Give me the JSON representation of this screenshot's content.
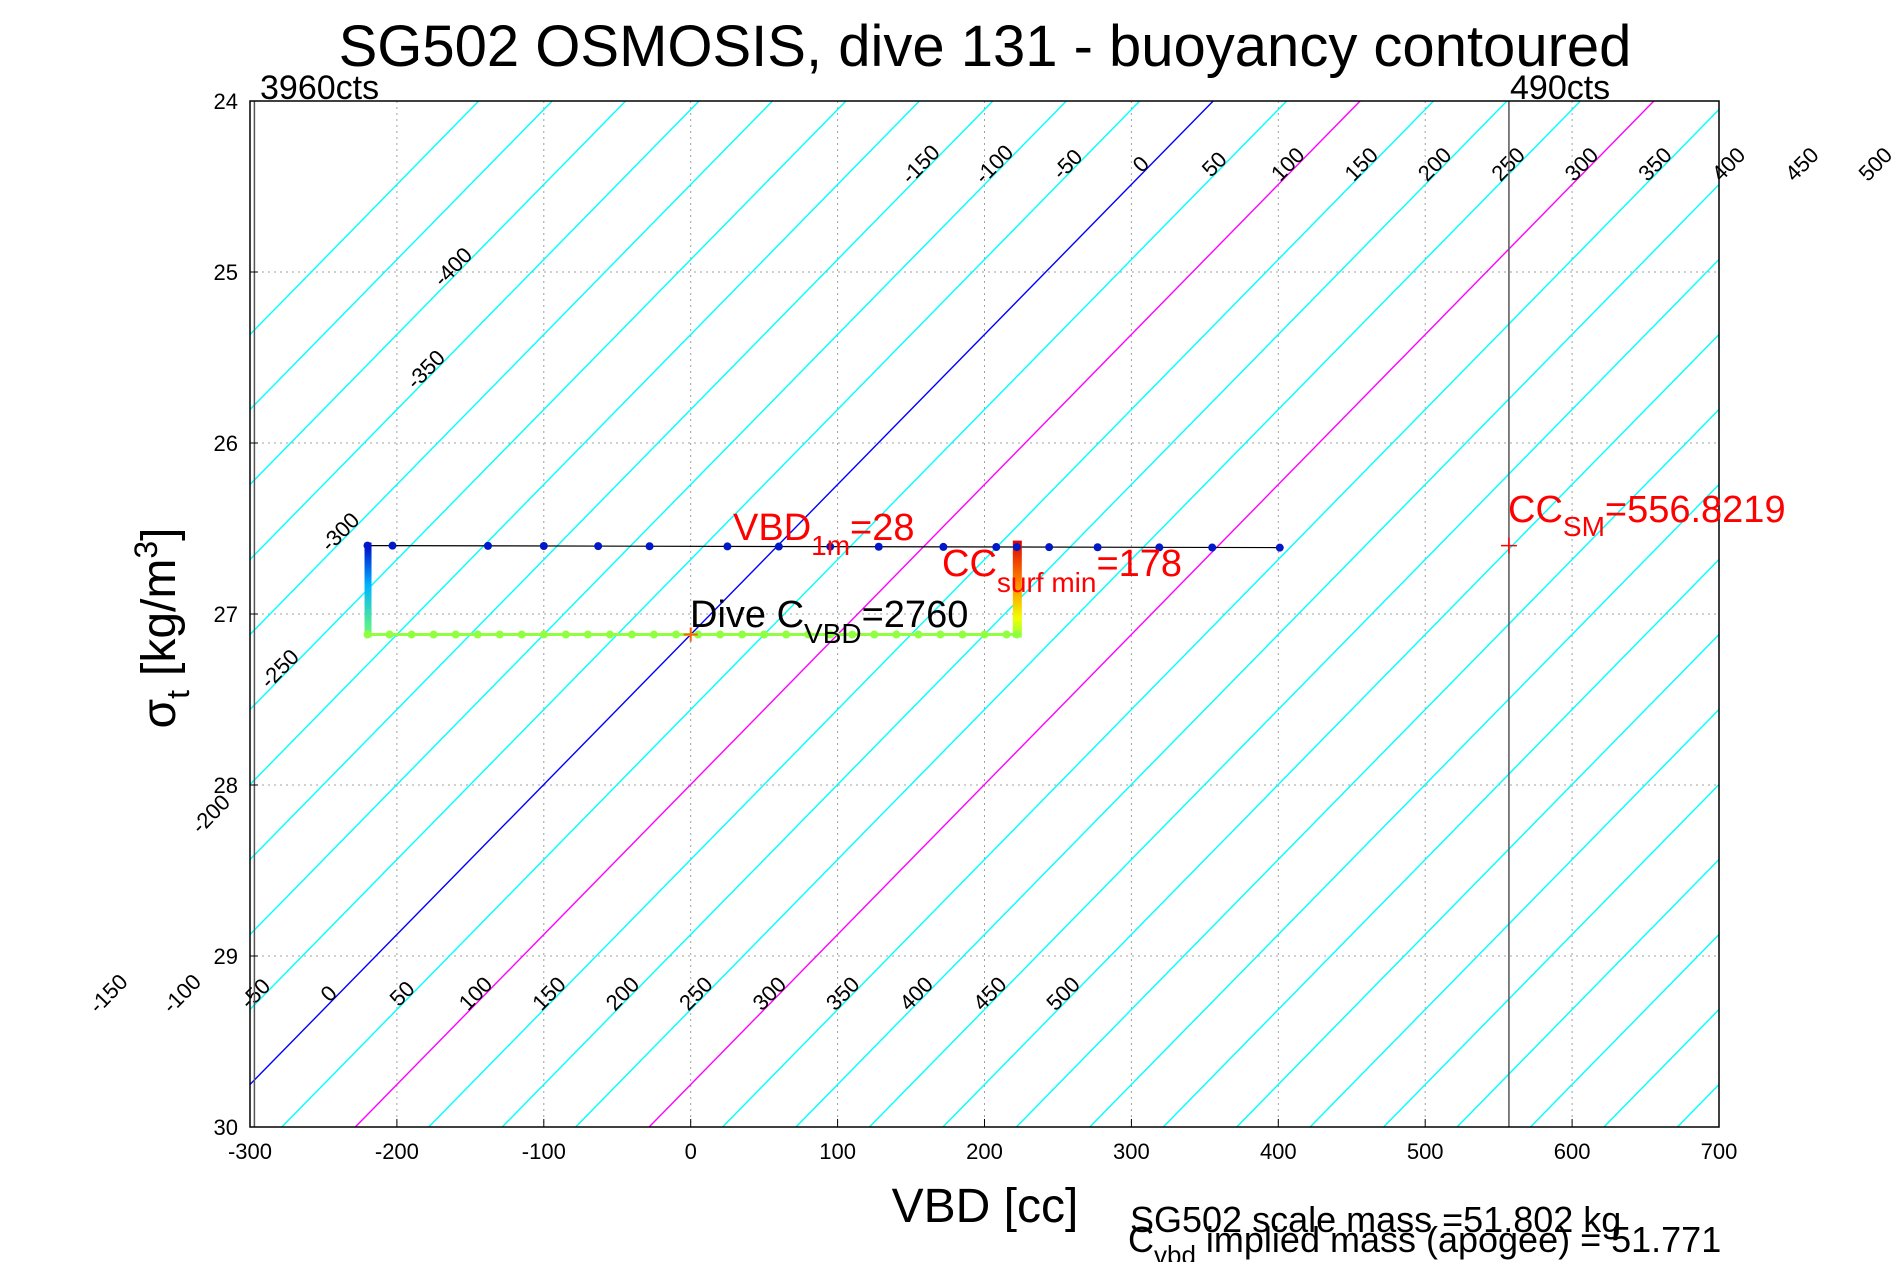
{
  "chart_data": {
    "type": "scatter",
    "title": "SG502 OSMOSIS, dive 131 - buoyancy contoured",
    "xlabel": "VBD [cc]",
    "ylabel": "σ_t [kg/m^3]",
    "ylabel_parts": {
      "sym": "σ",
      "sub": "t",
      "unit_pre": "[kg/m",
      "sup": "3",
      "unit_post": "]"
    },
    "xlim": [
      -300,
      700
    ],
    "ylim": [
      24,
      30
    ],
    "y_reversed": true,
    "grid": true,
    "xticks": [
      "-300",
      "-200",
      "-100",
      "0",
      "100",
      "200",
      "300",
      "400",
      "500",
      "600",
      "700"
    ],
    "yticks": [
      "24",
      "25",
      "26",
      "27",
      "28",
      "29",
      "30"
    ],
    "contour_top_labels": [
      "-400",
      "-350",
      "-300",
      "-250",
      "-200",
      "-150",
      "-100",
      "-50",
      "0",
      "50",
      "100",
      "150",
      "200",
      "250",
      "300",
      "350",
      "400",
      "450",
      "500"
    ],
    "contour_bottom_labels": [
      "-150",
      "-100",
      "-50",
      "0",
      "50",
      "100",
      "150",
      "200",
      "250",
      "300",
      "350",
      "400",
      "450",
      "500"
    ],
    "special_lines": {
      "zero_buoyancy_color": "#0000ff",
      "highlight_color": "#ff00ff",
      "highlight_levels": [
        100,
        300
      ],
      "contour_color": "#00ffff"
    },
    "limit_lines": [
      {
        "x": -297,
        "label": "3960cts"
      },
      {
        "x": 557,
        "label": "490cts"
      }
    ],
    "upper_track": {
      "y": 26.6,
      "points_x": [
        -220,
        -203,
        -138,
        -100,
        -63,
        -28,
        25,
        60,
        95,
        128,
        172,
        208,
        222,
        244,
        277,
        319,
        355,
        401
      ]
    },
    "lower_track": {
      "y": 27.12,
      "points_x": [
        -220,
        -205,
        -190,
        -175,
        -160,
        -145,
        -130,
        -115,
        -100,
        -85,
        -70,
        -55,
        -40,
        -25,
        -10,
        5,
        20,
        35,
        50,
        65,
        80,
        95,
        110,
        125,
        140,
        155,
        170,
        185,
        200,
        215,
        222
      ]
    },
    "annotations": {
      "vbd1m": {
        "main": "VBD",
        "sub": "1m",
        "post": "=28",
        "color": "#ff0000"
      },
      "ccsurf": {
        "main": "CC",
        "sub": "surf min",
        "post": "=178",
        "color": "#ff0000"
      },
      "dive_cvbd": {
        "main": "Dive C",
        "sub": "VBD",
        "post": "=2760",
        "color": "#000000"
      },
      "ccsm": {
        "main": "CC",
        "sub": "SM",
        "post": "=556.8219",
        "color": "#ff0000",
        "x": 557,
        "y": 26.6
      }
    },
    "footer": {
      "line1": "SG502 scale mass =51.802 kg",
      "line2_main": "C",
      "line2_sub": "vbd",
      "line2_post": " implied mass (apogee) = 51.771"
    }
  }
}
